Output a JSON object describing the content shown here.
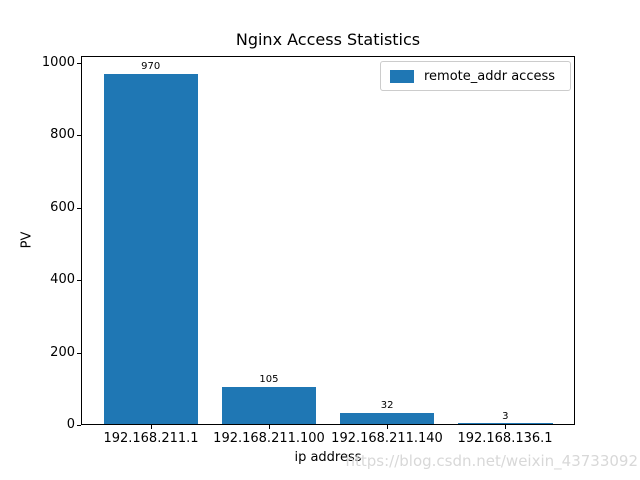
{
  "watermark": "https://blog.csdn.net/weixin_43733092",
  "colors": {
    "bar": "#1f77b4",
    "axis": "#000000",
    "watermark": "#d8d8d8",
    "background": "#ffffff"
  },
  "chart_data": {
    "type": "bar",
    "title": "Nginx Access Statistics",
    "xlabel": "ip address",
    "ylabel": "PV",
    "categories": [
      "192.168.211.1",
      "192.168.211.100",
      "192.168.211.140",
      "192.168.136.1"
    ],
    "values": [
      970,
      105,
      32,
      3
    ],
    "bar_labels": [
      "970",
      "105",
      "32",
      "3"
    ],
    "series": [
      {
        "name": "remote_addr access",
        "values": [
          970,
          105,
          32,
          3
        ]
      }
    ],
    "yticks": [
      0,
      200,
      400,
      600,
      800,
      1000
    ],
    "ylim": [
      0,
      1018.5
    ],
    "xlim": [
      -0.59,
      3.59
    ],
    "bar_width": 0.8,
    "bar_color": "#1f77b4",
    "grid": false,
    "legend": {
      "label": "remote_addr access",
      "position": "upper right"
    }
  }
}
